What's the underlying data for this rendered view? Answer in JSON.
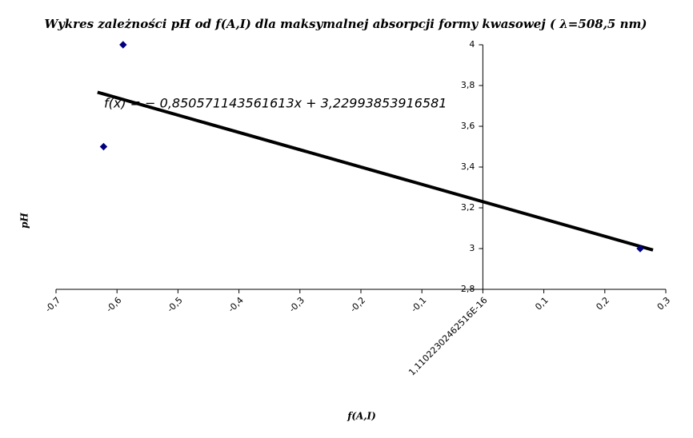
{
  "chart_data": {
    "type": "scatter",
    "title": "Wykres zależności pH od f(A,I) dla maksymalnej absorpcji formy kwasowej ( λ=508,5 nm)",
    "x_label": "f(A,I)",
    "y_label": "pH",
    "x": [
      -0.59,
      -0.622,
      0.258
    ],
    "values": [
      4,
      3.5,
      3
    ],
    "color": "#00007f",
    "trendline": {
      "equation": "f(x) = − 0,850571143561613x + 3,22993853916581",
      "x": [
        -0.632,
        0.279
      ],
      "values": [
        3.767,
        2.993
      ],
      "color": "#000000"
    },
    "xlim": [
      -0.7,
      0.3
    ],
    "xticks": [
      {
        "value": -0.7,
        "label": "-0,7"
      },
      {
        "value": -0.6,
        "label": "-0,6"
      },
      {
        "value": -0.5,
        "label": "-0,5"
      },
      {
        "value": -0.4,
        "label": "-0,4"
      },
      {
        "value": -0.3,
        "label": "-0,3"
      },
      {
        "value": -0.2,
        "label": "-0,2"
      },
      {
        "value": -0.1,
        "label": "-0,1"
      },
      {
        "value": 0,
        "label": "1,11022302462516E-16"
      },
      {
        "value": 0.1,
        "label": "0,1"
      },
      {
        "value": 0.2,
        "label": "0,2"
      },
      {
        "value": 0.3,
        "label": "0,3"
      }
    ],
    "ylim": [
      2.8,
      4
    ],
    "yticks": [
      {
        "value": 2.8,
        "label": "2,8"
      },
      3,
      {
        "value": 3.2,
        "label": "3,2"
      },
      {
        "value": 3.4,
        "label": "3,4"
      },
      {
        "value": 3.6,
        "label": "3,6"
      },
      {
        "value": 3.8,
        "label": "3,8"
      },
      4
    ]
  }
}
